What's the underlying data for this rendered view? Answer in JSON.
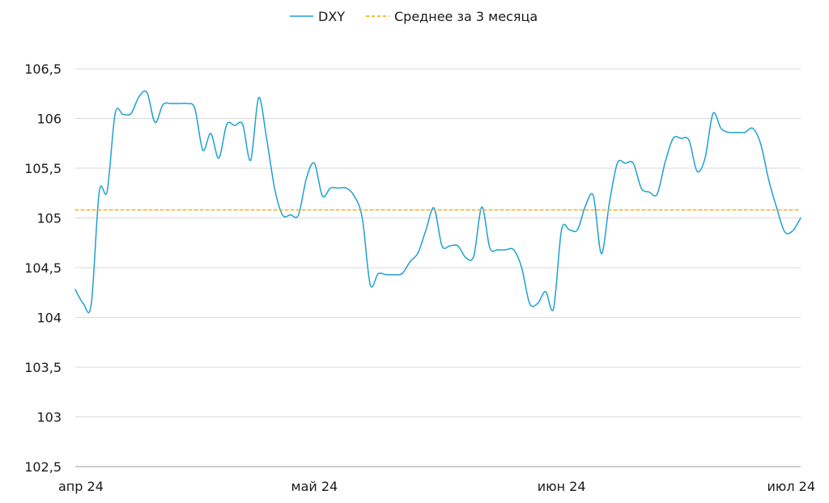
{
  "chart_data": {
    "type": "line",
    "legend_position": "top-center",
    "grid": true,
    "ylim": [
      102.5,
      106.5
    ],
    "y_ticks": [
      "106,5",
      "106",
      "105,5",
      "105",
      "104,5",
      "104",
      "103,5",
      "103",
      "102,5"
    ],
    "y_tick_values": [
      106.5,
      106,
      105.5,
      105,
      104.5,
      104,
      103.5,
      103,
      102.5
    ],
    "x_ticks": [
      {
        "label": "апр 24",
        "date": "2024-04-01"
      },
      {
        "label": "май 24",
        "date": "2024-05-01"
      },
      {
        "label": "июн 24",
        "date": "2024-06-01"
      },
      {
        "label": "июл 24",
        "date": "2024-07-01"
      }
    ],
    "series": [
      {
        "name": "DXY",
        "color": "#1ea0d2",
        "style": "solid",
        "points": [
          [
            "2024-04-01",
            104.28
          ],
          [
            "2024-04-02",
            104.14
          ],
          [
            "2024-04-03",
            104.13
          ],
          [
            "2024-04-04",
            105.26
          ],
          [
            "2024-04-05",
            105.27
          ],
          [
            "2024-04-06",
            106.05
          ],
          [
            "2024-04-07",
            106.04
          ],
          [
            "2024-04-08",
            106.05
          ],
          [
            "2024-04-09",
            106.22
          ],
          [
            "2024-04-10",
            106.26
          ],
          [
            "2024-04-11",
            105.96
          ],
          [
            "2024-04-12",
            106.14
          ],
          [
            "2024-04-13",
            106.15
          ],
          [
            "2024-04-14",
            106.15
          ],
          [
            "2024-04-15",
            106.15
          ],
          [
            "2024-04-16",
            106.1
          ],
          [
            "2024-04-17",
            105.68
          ],
          [
            "2024-04-18",
            105.85
          ],
          [
            "2024-04-19",
            105.6
          ],
          [
            "2024-04-20",
            105.94
          ],
          [
            "2024-04-21",
            105.93
          ],
          [
            "2024-04-22",
            105.94
          ],
          [
            "2024-04-23",
            105.58
          ],
          [
            "2024-04-24",
            106.21
          ],
          [
            "2024-04-25",
            105.8
          ],
          [
            "2024-04-26",
            105.3
          ],
          [
            "2024-04-27",
            105.03
          ],
          [
            "2024-04-28",
            105.03
          ],
          [
            "2024-04-29",
            105.03
          ],
          [
            "2024-04-30",
            105.4
          ],
          [
            "2024-05-01",
            105.55
          ],
          [
            "2024-05-02",
            105.22
          ],
          [
            "2024-05-03",
            105.3
          ],
          [
            "2024-05-04",
            105.3
          ],
          [
            "2024-05-05",
            105.3
          ],
          [
            "2024-05-06",
            105.22
          ],
          [
            "2024-05-07",
            105.0
          ],
          [
            "2024-05-08",
            104.33
          ],
          [
            "2024-05-09",
            104.44
          ],
          [
            "2024-05-10",
            104.43
          ],
          [
            "2024-05-11",
            104.43
          ],
          [
            "2024-05-12",
            104.44
          ],
          [
            "2024-05-13",
            104.56
          ],
          [
            "2024-05-14",
            104.65
          ],
          [
            "2024-05-15",
            104.88
          ],
          [
            "2024-05-16",
            105.1
          ],
          [
            "2024-05-17",
            104.72
          ],
          [
            "2024-05-18",
            104.72
          ],
          [
            "2024-05-19",
            104.72
          ],
          [
            "2024-05-20",
            104.6
          ],
          [
            "2024-05-21",
            104.62
          ],
          [
            "2024-05-22",
            105.11
          ],
          [
            "2024-05-23",
            104.7
          ],
          [
            "2024-05-24",
            104.68
          ],
          [
            "2024-05-25",
            104.68
          ],
          [
            "2024-05-26",
            104.68
          ],
          [
            "2024-05-27",
            104.5
          ],
          [
            "2024-05-28",
            104.14
          ],
          [
            "2024-05-29",
            104.14
          ],
          [
            "2024-05-30",
            104.26
          ],
          [
            "2024-05-31",
            104.09
          ],
          [
            "2024-06-01",
            104.88
          ],
          [
            "2024-06-02",
            104.88
          ],
          [
            "2024-06-03",
            104.88
          ],
          [
            "2024-06-04",
            105.12
          ],
          [
            "2024-06-05",
            105.22
          ],
          [
            "2024-06-06",
            104.64
          ],
          [
            "2024-06-07",
            105.15
          ],
          [
            "2024-06-08",
            105.55
          ],
          [
            "2024-06-09",
            105.55
          ],
          [
            "2024-06-10",
            105.55
          ],
          [
            "2024-06-11",
            105.3
          ],
          [
            "2024-06-12",
            105.26
          ],
          [
            "2024-06-13",
            105.24
          ],
          [
            "2024-06-14",
            105.56
          ],
          [
            "2024-06-15",
            105.8
          ],
          [
            "2024-06-16",
            105.8
          ],
          [
            "2024-06-17",
            105.78
          ],
          [
            "2024-06-18",
            105.47
          ],
          [
            "2024-06-19",
            105.6
          ],
          [
            "2024-06-20",
            106.05
          ],
          [
            "2024-06-21",
            105.9
          ],
          [
            "2024-06-22",
            105.86
          ],
          [
            "2024-06-23",
            105.86
          ],
          [
            "2024-06-24",
            105.86
          ],
          [
            "2024-06-25",
            105.9
          ],
          [
            "2024-06-26",
            105.74
          ],
          [
            "2024-06-27",
            105.38
          ],
          [
            "2024-06-28",
            105.1
          ],
          [
            "2024-06-29",
            104.86
          ],
          [
            "2024-06-30",
            104.87
          ],
          [
            "2024-07-01",
            105.0
          ]
        ]
      },
      {
        "name": "Среднее за 3 месяца",
        "color": "#f2a500",
        "style": "dashed",
        "points": [
          [
            "2024-04-01",
            105.08
          ],
          [
            "2024-07-01",
            105.08
          ]
        ]
      }
    ]
  }
}
